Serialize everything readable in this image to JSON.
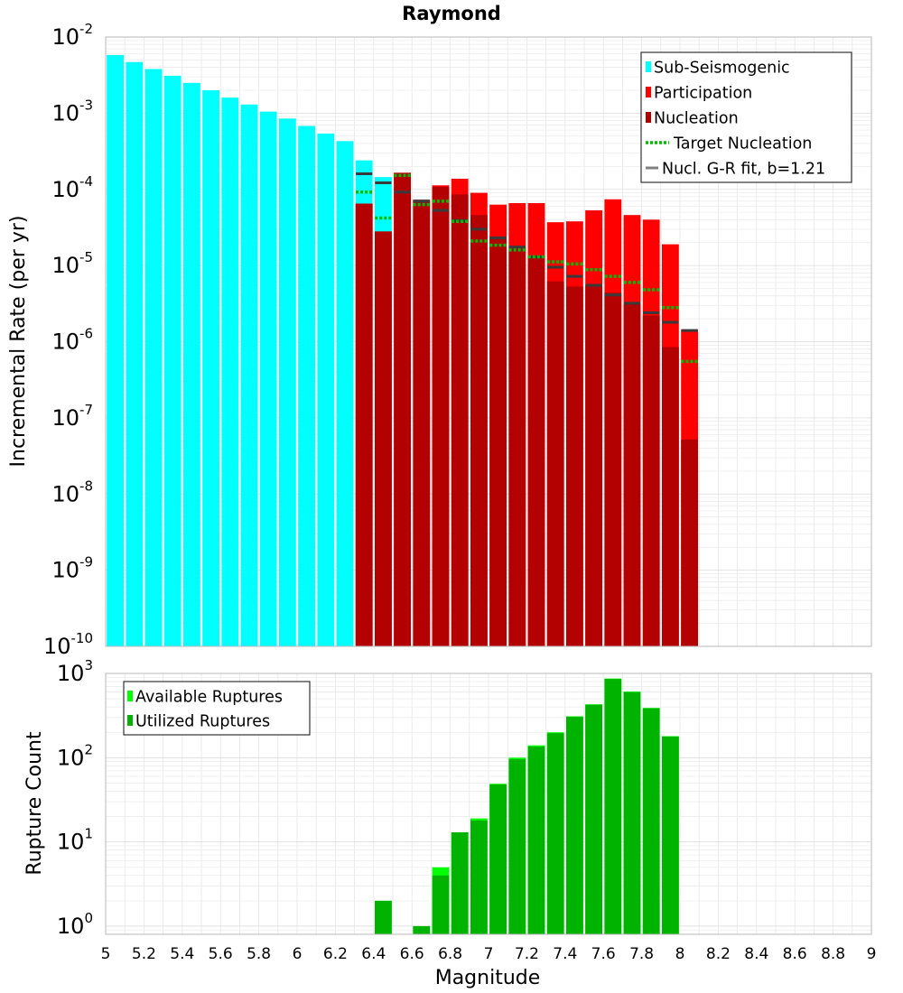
{
  "chart_data": [
    {
      "type": "bar",
      "title": "Raymond",
      "xlabel": "",
      "ylabel": "Incremental Rate (per yr)",
      "xlim": [
        5,
        9
      ],
      "ylim": [
        1e-10,
        0.01
      ],
      "yscale": "log",
      "y_tick_exponents": [
        -10,
        -9,
        -8,
        -7,
        -6,
        -5,
        -4,
        -3,
        -2
      ],
      "grid": true,
      "legend_placement": "top-right",
      "legend": [
        {
          "label": "Sub-Seismogenic",
          "kind": "bar",
          "color": "#00ffff"
        },
        {
          "label": "Participation",
          "kind": "bar",
          "color": "#ff0000"
        },
        {
          "label": "Nucleation",
          "kind": "bar",
          "color": "#b30000"
        },
        {
          "label": "Target Nucleation",
          "kind": "dotted-line",
          "color": "#00bb00"
        },
        {
          "label": "Nucl. G-R fit, b=1.21",
          "kind": "line",
          "color": "#808080"
        }
      ],
      "bin_width": 0.1,
      "series": [
        {
          "name": "Sub-Seismogenic",
          "color": "#00ffff",
          "x": [
            5.05,
            5.15,
            5.25,
            5.35,
            5.45,
            5.55,
            5.65,
            5.75,
            5.85,
            5.95,
            6.05,
            6.15,
            6.25,
            6.35,
            6.45
          ],
          "values": [
            0.0058,
            0.0047,
            0.0038,
            0.0031,
            0.0025,
            0.002,
            0.0016,
            0.0013,
            0.00105,
            0.00085,
            0.00068,
            0.00054,
            0.00043,
            0.00024,
            0.000145
          ]
        },
        {
          "name": "Participation",
          "color": "#ff0000",
          "x": [
            6.35,
            6.45,
            6.55,
            6.65,
            6.75,
            6.85,
            6.95,
            7.05,
            7.15,
            7.25,
            7.35,
            7.45,
            7.55,
            7.65,
            7.75,
            7.85,
            7.95,
            8.05
          ],
          "values": [
            6.5e-05,
            2.8e-05,
            0.000165,
            7.3e-05,
            0.000113,
            0.000138,
            9e-05,
            6.3e-05,
            6.6e-05,
            6.6e-05,
            3.7e-05,
            3.8e-05,
            5.3e-05,
            7.4e-05,
            4.6e-05,
            4e-05,
            1.9e-05,
            1.45e-06
          ]
        },
        {
          "name": "Nucleation",
          "color": "#b30000",
          "x": [
            6.35,
            6.45,
            6.55,
            6.65,
            6.75,
            6.85,
            6.95,
            7.05,
            7.15,
            7.25,
            7.35,
            7.45,
            7.55,
            7.65,
            7.75,
            7.85,
            7.95,
            8.05
          ],
          "values": [
            6.5e-05,
            2.8e-05,
            0.000165,
            7.3e-05,
            0.000108,
            8.6e-05,
            4.6e-05,
            2.4e-05,
            1.8e-05,
            1.35e-05,
            6.2e-06,
            5.3e-06,
            5.6e-06,
            4.4e-06,
            3.1e-06,
            2.2e-06,
            8.5e-07,
            5.2e-08
          ]
        },
        {
          "name": "Target Nucleation",
          "color": "#00bb00",
          "x": [
            6.35,
            6.45,
            6.55,
            6.65,
            6.75,
            6.85,
            6.95,
            7.05,
            7.15,
            7.25,
            7.35,
            7.45,
            7.55,
            7.65,
            7.75,
            7.85,
            7.95,
            8.05
          ],
          "values": [
            9.2e-05,
            4.2e-05,
            0.000152,
            6.3e-05,
            7e-05,
            3.8e-05,
            2.1e-05,
            1.85e-05,
            1.6e-05,
            1.3e-05,
            1.12e-05,
            1.05e-05,
            8.8e-06,
            7.2e-06,
            6e-06,
            4.8e-06,
            2.8e-06,
            5.5e-07
          ]
        },
        {
          "name": "Nucl. G-R fit, b=1.21",
          "color": "#808080",
          "x": [
            6.35,
            6.45,
            6.55,
            6.65,
            6.75,
            6.85,
            6.95,
            7.05,
            7.15,
            7.25,
            7.35,
            7.45,
            7.55,
            7.65,
            7.75,
            7.85,
            7.95,
            8.05
          ],
          "values": [
            0.00016,
            0.000122,
            9.2e-05,
            7e-05,
            5.3e-05,
            3.9e-05,
            3e-05,
            2.3e-05,
            1.75e-05,
            1.3e-05,
            9.5e-06,
            7.2e-06,
            5.5e-06,
            4.1e-06,
            3.2e-06,
            2.4e-06,
            1.8e-06,
            1.4e-06
          ]
        }
      ]
    },
    {
      "type": "bar",
      "title": "",
      "xlabel": "Magnitude",
      "ylabel": "Rupture Count",
      "xlim": [
        5,
        9
      ],
      "ylim": [
        0.8,
        1000
      ],
      "yscale": "log",
      "y_tick_exponents": [
        0,
        1,
        2,
        3
      ],
      "x_tick_labels": [
        "5",
        "5.2",
        "5.4",
        "5.6",
        "5.8",
        "6",
        "6.2",
        "6.4",
        "6.6",
        "6.8",
        "7",
        "7.2",
        "7.4",
        "7.6",
        "7.8",
        "8",
        "8.2",
        "8.4",
        "8.6",
        "8.8",
        "9"
      ],
      "grid": true,
      "legend_placement": "top-left",
      "legend": [
        {
          "label": "Available Ruptures",
          "kind": "bar",
          "color": "#00ff00"
        },
        {
          "label": "Utilized Ruptures",
          "kind": "bar",
          "color": "#00b300"
        }
      ],
      "bin_width": 0.1,
      "series": [
        {
          "name": "Available Ruptures",
          "color": "#00ff00",
          "x": [
            6.45,
            6.65,
            6.75,
            6.85,
            6.95,
            7.05,
            7.15,
            7.25,
            7.35,
            7.45,
            7.55,
            7.65,
            7.75,
            7.85,
            7.95
          ],
          "values": [
            2,
            1,
            5,
            13,
            19,
            49,
            100,
            140,
            200,
            310,
            430,
            870,
            610,
            390,
            180
          ]
        },
        {
          "name": "Utilized Ruptures",
          "color": "#00b300",
          "x": [
            6.45,
            6.65,
            6.75,
            6.85,
            6.95,
            7.05,
            7.15,
            7.25,
            7.35,
            7.45,
            7.55,
            7.65,
            7.75,
            7.85,
            7.95
          ],
          "values": [
            2,
            1,
            4,
            13,
            18,
            48,
            96,
            135,
            195,
            305,
            425,
            860,
            600,
            385,
            178
          ]
        }
      ]
    }
  ]
}
